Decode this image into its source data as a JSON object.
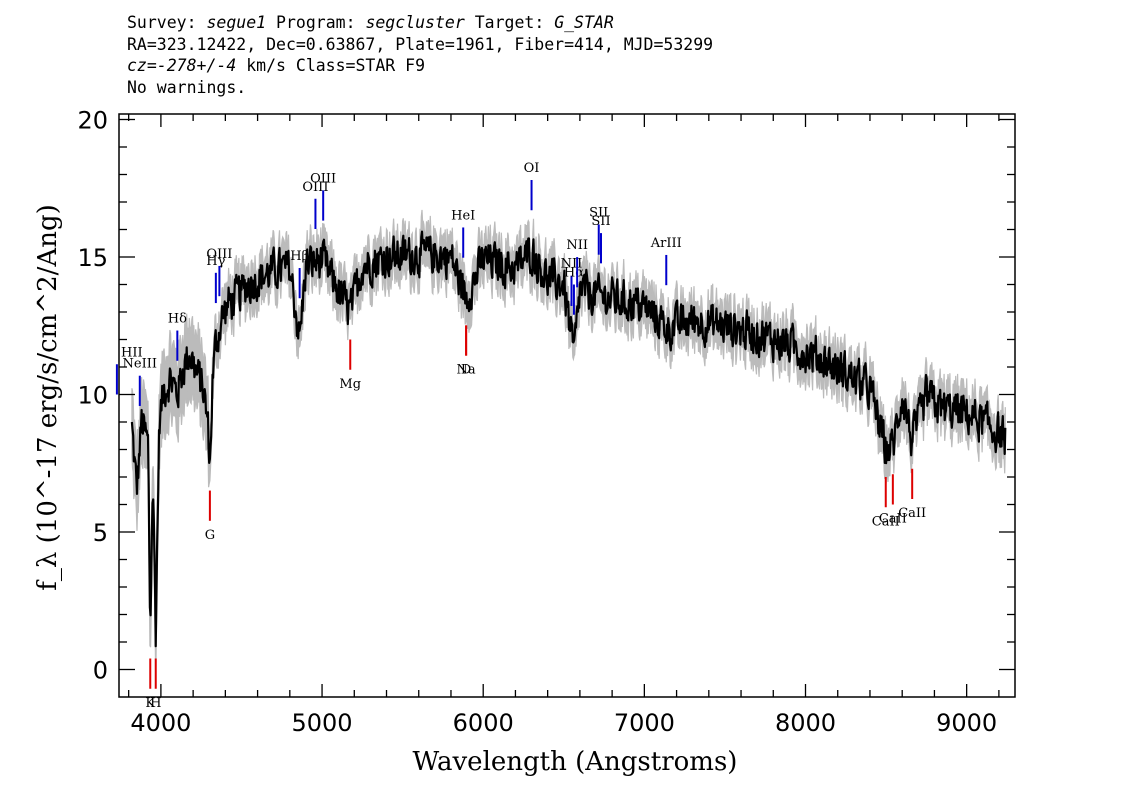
{
  "header": {
    "line1": {
      "survey_label": "Survey: ",
      "survey": "segue1",
      "program_label": " Program: ",
      "program": "segcluster",
      "target_label": " Target: ",
      "target": "G_STAR"
    },
    "line2": "RA=323.12422, Dec=0.63867, Plate=1961, Fiber=414, MJD=53299",
    "line3": {
      "cz": "cz=-278+/-4",
      "rest": " km/s Class=STAR F9"
    },
    "line4": "No warnings."
  },
  "chart_data": {
    "type": "line",
    "xlabel": "Wavelength (Angstroms)",
    "ylabel": "f_λ (10^-17 erg/s/cm^2/Ang)",
    "xlim": [
      3740,
      9300
    ],
    "ylim": [
      -1,
      20.2
    ],
    "x_ticks": [
      4000,
      5000,
      6000,
      7000,
      8000,
      9000
    ],
    "y_ticks": [
      0,
      5,
      10,
      15,
      20
    ],
    "x_minor_step": 200,
    "y_minor_step": 1,
    "colors": {
      "flux": "#000000",
      "error_band": "#bbbbbb",
      "emission": "#0000cc",
      "absorption": "#dd0000"
    },
    "series": [
      {
        "name": "flux",
        "x": [
          3820,
          3850,
          3880,
          3900,
          3920,
          3934,
          3950,
          3968,
          3990,
          4020,
          4060,
          4101,
          4140,
          4180,
          4220,
          4260,
          4290,
          4305,
          4320,
          4340,
          4380,
          4420,
          4480,
          4540,
          4600,
          4700,
          4800,
          4861,
          4900,
          5000,
          5100,
          5175,
          5250,
          5400,
          5600,
          5800,
          5893,
          6000,
          6200,
          6300,
          6400,
          6500,
          6563,
          6600,
          6700,
          6800,
          7000,
          7150,
          7300,
          7500,
          7700,
          7900,
          8100,
          8300,
          8400,
          8498,
          8542,
          8600,
          8662,
          8750,
          8850,
          9000,
          9100,
          9200,
          9240
        ],
        "y": [
          8.8,
          6.5,
          9.0,
          8.6,
          8.2,
          1.4,
          7.0,
          1.4,
          9.0,
          10.2,
          10.6,
          10.0,
          11.0,
          11.5,
          10.8,
          10.3,
          9.0,
          7.4,
          10.5,
          11.8,
          12.8,
          13.3,
          13.6,
          14.0,
          14.2,
          14.5,
          14.6,
          12.0,
          14.7,
          14.9,
          13.8,
          13.0,
          14.7,
          15.0,
          15.1,
          15.0,
          13.5,
          14.9,
          14.6,
          15.2,
          14.2,
          14.0,
          11.4,
          13.8,
          13.6,
          13.5,
          13.2,
          12.4,
          12.7,
          12.5,
          12.2,
          11.8,
          11.3,
          10.6,
          10.2,
          8.0,
          8.1,
          10.0,
          8.3,
          9.9,
          9.5,
          9.3,
          9.0,
          8.6,
          8.4
        ]
      }
    ],
    "emission_lines": [
      {
        "label": "HII",
        "x": 3727,
        "label_at": "start"
      },
      {
        "label": "NeIII",
        "x": 3869
      },
      {
        "label": "Hδ",
        "x": 4102
      },
      {
        "label": "Hγ",
        "x": 4341
      },
      {
        "label": "OIII",
        "x": 4363
      },
      {
        "label": "Hβ",
        "x": 4861
      },
      {
        "label": "OIII",
        "x": 4959
      },
      {
        "label": "OIII",
        "x": 5007
      },
      {
        "label": "HeI",
        "x": 5876
      },
      {
        "label": "OI",
        "x": 6300
      },
      {
        "label": "NII",
        "x": 6548
      },
      {
        "label": "Hα",
        "x": 6563
      },
      {
        "label": "NII",
        "x": 6583
      },
      {
        "label": "SII",
        "x": 6717
      },
      {
        "label": "SII",
        "x": 6731
      },
      {
        "label": "ArIII",
        "x": 7136
      }
    ],
    "absorption_lines": [
      {
        "label": "K",
        "x": 3934
      },
      {
        "label": "H",
        "x": 3968
      },
      {
        "label": "G",
        "x": 4304
      },
      {
        "label": "Mg",
        "x": 5175
      },
      {
        "label": "Na",
        "x": 5894
      },
      {
        "label": "D",
        "x": 5894
      },
      {
        "label": "CaII",
        "x": 8498
      },
      {
        "label": "CaII",
        "x": 8542
      },
      {
        "label": "CaII",
        "x": 8662
      }
    ]
  }
}
